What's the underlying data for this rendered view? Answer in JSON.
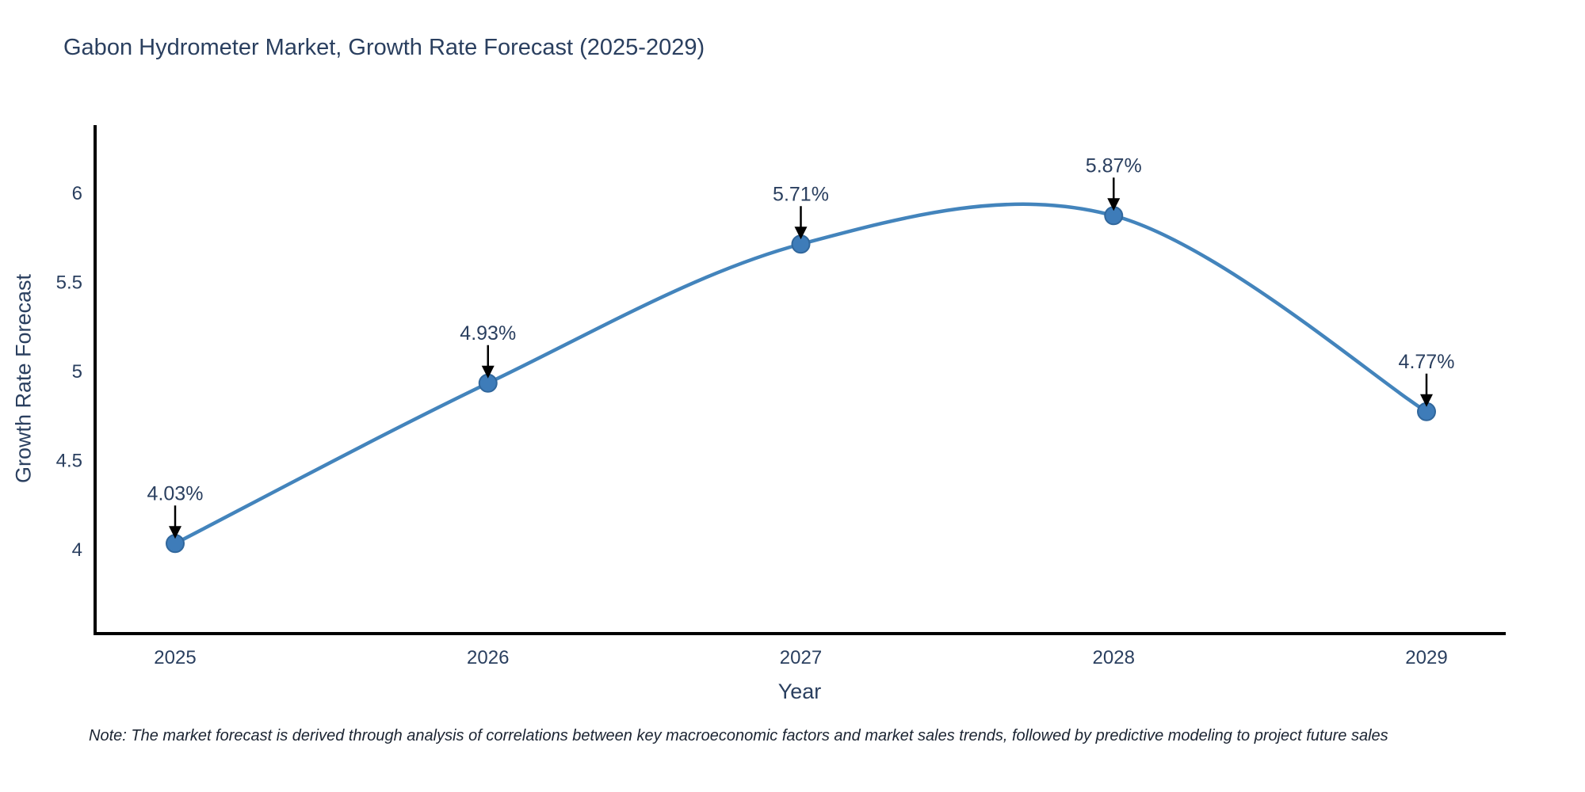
{
  "chart_data": {
    "type": "line",
    "title": "Gabon Hydrometer Market, Growth Rate Forecast (2025-2029)",
    "xlabel": "Year",
    "ylabel": "Growth Rate Forecast",
    "categories": [
      "2025",
      "2026",
      "2027",
      "2028",
      "2029"
    ],
    "series": [
      {
        "name": "Growth Rate Forecast",
        "values": [
          4.03,
          4.93,
          5.71,
          5.87,
          4.77
        ]
      }
    ],
    "point_labels": [
      "4.03%",
      "4.93%",
      "5.71%",
      "5.87%",
      "4.77%"
    ],
    "yticks": [
      "4",
      "4.5",
      "5",
      "5.5",
      "6"
    ],
    "ylim": [
      3.52,
      6.37
    ],
    "grid": false,
    "legend": "none",
    "line_shape": "spline",
    "line_color": "#4384bc",
    "marker_color": "#3e7cb9",
    "marker_edge_color": "#31679c",
    "axis_color": "#000000",
    "text_color": "#2a3f5f",
    "annotation_arrow_color": "#000000"
  },
  "footer": {
    "note": "Note: The market forecast is derived through analysis of correlations between key macroeconomic factors and market sales trends, followed by predictive modeling to project future sales"
  }
}
